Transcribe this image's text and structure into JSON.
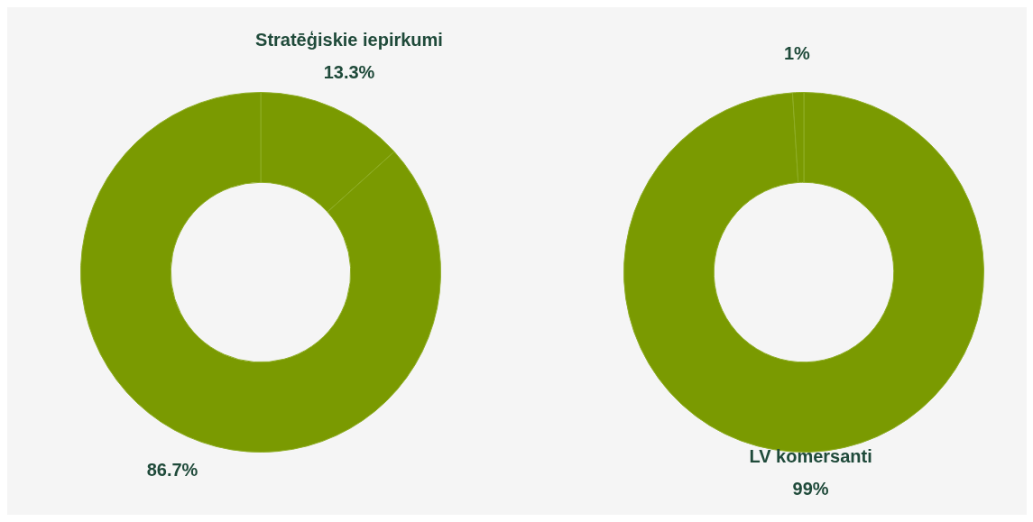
{
  "chart_data": [
    {
      "type": "donut",
      "categories": [
        "Stratēģiskie iepirkumi",
        null
      ],
      "values": [
        13.3,
        86.7
      ],
      "value_labels": [
        "13.3%",
        "86.7%"
      ],
      "colors": [
        "#7a9a01",
        "#7a9a01"
      ]
    },
    {
      "type": "donut",
      "categories": [
        "LV komersanti",
        null
      ],
      "values": [
        99,
        1
      ],
      "value_labels": [
        "99%",
        "1%"
      ],
      "colors": [
        "#7a9a01",
        "#7a9a01"
      ]
    }
  ]
}
